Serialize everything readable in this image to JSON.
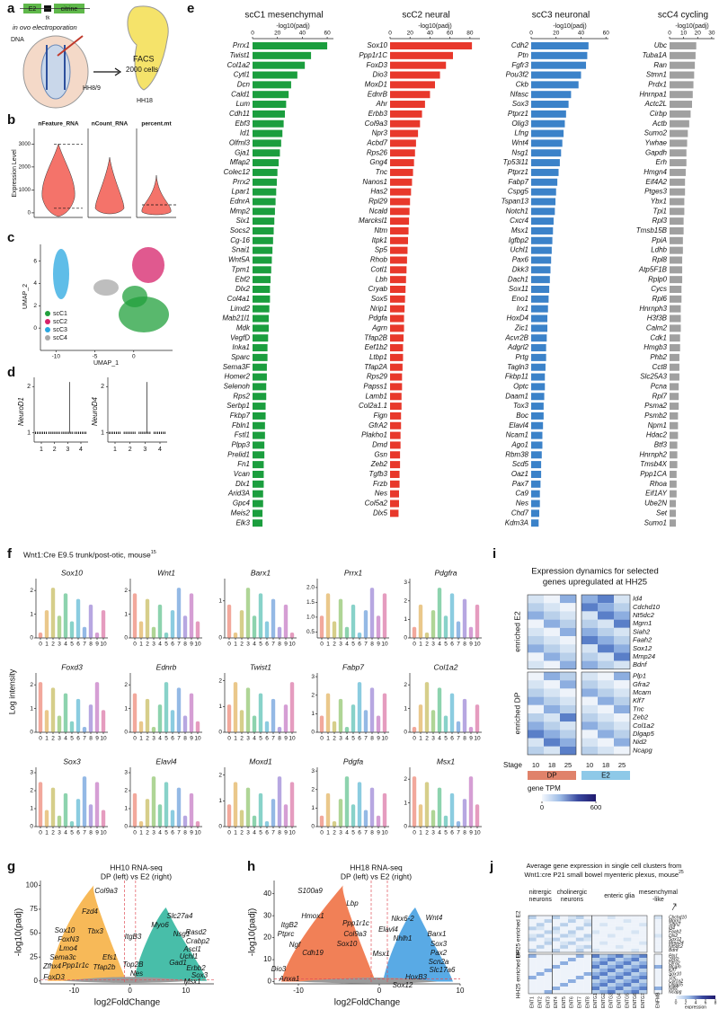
{
  "panel_labels": [
    "a",
    "b",
    "c",
    "d",
    "e",
    "f",
    "g",
    "h",
    "i",
    "j"
  ],
  "a": {
    "construct": [
      "E2",
      "tk",
      "citrine"
    ],
    "method": "in ovo electroporation",
    "dna": "DNA",
    "stage_in": "HH8/9",
    "facs": "FACS",
    "cells": "2000 cells",
    "stage_out": "HH18"
  },
  "b": {
    "ylabel": "Expression Level",
    "panels": [
      "nFeature_RNA",
      "nCount_RNA",
      "percent.mt"
    ],
    "yticks": [
      0,
      1000,
      2000,
      3000
    ],
    "ylim": [
      -200,
      3600
    ]
  },
  "c": {
    "xlabel": "UMAP_1",
    "ylabel": "UMAP_2",
    "xticks": [
      -10,
      -5,
      0
    ],
    "xlim": [
      -12,
      5
    ],
    "yticks": [
      0,
      2,
      4,
      6
    ],
    "ylim": [
      -2,
      7.5
    ],
    "legend": [
      {
        "name": "scC1",
        "color": "#22a03c"
      },
      {
        "name": "scC2",
        "color": "#d6226a"
      },
      {
        "name": "scC3",
        "color": "#2aa7e0"
      },
      {
        "name": "scC4",
        "color": "#a8a8a8"
      }
    ]
  },
  "d": {
    "genes": [
      "NeuroD1",
      "NeuroD4"
    ],
    "yticks": [
      1,
      2
    ],
    "ylim": [
      0.8,
      2.2
    ],
    "xticks": [
      1,
      2,
      3,
      4
    ]
  },
  "chart_data": [
    {
      "type": "barh",
      "title": "scC1 mesenchymal",
      "xlabel": "-log10(padj)",
      "color": "#1b9e3e",
      "xlim": [
        0,
        65
      ],
      "xticks": [
        0,
        20,
        40,
        60
      ],
      "categories": [
        "Prrx1",
        "Twist1",
        "Col1a2",
        "Cytl1",
        "Dcn",
        "Cald1",
        "Lum",
        "Cdh11",
        "Ebf3",
        "Id1",
        "Olfml3",
        "Gja1",
        "Mfap2",
        "Colec12",
        "Prrx2",
        "Lpar1",
        "EdnrA",
        "Mmp2",
        "Six1",
        "Socs2",
        "Cg-16",
        "Snai1",
        "Wnt5A",
        "Tpm1",
        "Ebf2",
        "Dlx2",
        "Col4a1",
        "Limd2",
        "Mab21l1",
        "Mdk",
        "VegfD",
        "Inka1",
        "Sparc",
        "Sema3F",
        "Homer2",
        "Selenoh",
        "Rps2",
        "Serbp1",
        "Fkbp7",
        "Fbln1",
        "Fstl1",
        "Plpp3",
        "Prelid1",
        "Fn1",
        "Vcan",
        "Dlx1",
        "Arid3A",
        "Gpc4",
        "Meis2",
        "Elk3"
      ],
      "values": [
        60,
        47,
        42,
        36,
        31,
        29,
        27,
        26,
        25,
        24,
        23,
        22,
        21,
        20,
        19.5,
        19,
        18.5,
        18,
        17.5,
        17,
        16.5,
        16,
        15.5,
        15,
        14.5,
        14,
        14,
        13.5,
        13,
        13,
        12.5,
        12,
        12,
        11.5,
        11.5,
        11,
        11,
        10.5,
        10.5,
        10,
        10,
        9.5,
        9.5,
        9,
        9,
        9,
        8.5,
        8.5,
        8,
        8
      ]
    },
    {
      "type": "barh",
      "title": "scC2 neural",
      "xlabel": "-log10(padj)",
      "color": "#e8382b",
      "xlim": [
        0,
        90
      ],
      "xticks": [
        0,
        20,
        40,
        60,
        80
      ],
      "categories": [
        "Sox10",
        "Ppp1r1C",
        "FoxD3",
        "Dio3",
        "MoxD1",
        "EdnrB",
        "Ahr",
        "Erbb3",
        "Col9a3",
        "Npr3",
        "Acbd7",
        "Rps26",
        "Gng4",
        "Tnc",
        "Nanos1",
        "Has2",
        "Rpl29",
        "Ncald",
        "Marcksl1",
        "Ntm",
        "Itpk1",
        "Sp5",
        "Rhob",
        "Cotl1",
        "Lbh",
        "Cryab",
        "Sox5",
        "Nrip1",
        "Pdgfa",
        "Agrn",
        "Tfap2B",
        "Eef1b2",
        "Ltbp1",
        "Tfap2A",
        "Rps29",
        "Papss1",
        "Lamb1",
        "Col2a1.1",
        "Fign",
        "GfrA2",
        "Plakho1",
        "Dmd",
        "Gsn",
        "Zeb2",
        "Tgfb3",
        "Frzb",
        "Nes",
        "Col5a2",
        "Dlx5"
      ],
      "values": [
        82,
        63,
        56,
        50,
        45,
        40,
        35,
        32,
        30,
        28,
        26,
        25,
        24,
        23,
        22,
        21,
        20,
        19.5,
        19,
        18.5,
        18,
        17.5,
        17,
        16.5,
        16,
        15.5,
        15,
        14.5,
        14,
        14,
        13.5,
        13,
        13,
        12.5,
        12,
        12,
        11.5,
        11.5,
        11,
        11,
        10.5,
        10.5,
        10,
        10,
        9.5,
        9.5,
        9,
        9,
        8.5
      ]
    },
    {
      "type": "barh",
      "title": "scC3 neuronal",
      "xlabel": "-log10(padj)",
      "color": "#3b82c9",
      "xlim": [
        0,
        62
      ],
      "xticks": [
        0,
        20,
        40,
        60
      ],
      "categories": [
        "Cdh2",
        "Ptn",
        "Fgfr3",
        "Pou3f2",
        "Ckb",
        "Nfasc",
        "Sox3",
        "Ptprz1",
        "Olig3",
        "Lfng",
        "Wnt4",
        "Nsg1",
        "Tp53i11",
        "Ptprz1",
        "Fabp7",
        "Cspg5",
        "Tspan13",
        "Notch1",
        "Cxcr4",
        "Msx1",
        "Igfbp2",
        "Uchl1",
        "Pax6",
        "Dkk3",
        "Dach1",
        "Sox11",
        "Eno1",
        "Irx1",
        "HoxD4",
        "Zic1",
        "Acvr2B",
        "Adgrl2",
        "Prtg",
        "Tagln3",
        "Fkbp11",
        "Optc",
        "Daam1",
        "Tox3",
        "Boc",
        "Elavl4",
        "Ncam1",
        "Ago1",
        "Rbm38",
        "Scd5",
        "Oaz1",
        "Pax7",
        "Ca9",
        "Nes",
        "Chd7",
        "Kdm3A"
      ],
      "values": [
        46,
        45,
        44,
        40,
        38,
        32,
        30,
        28,
        27,
        26,
        25,
        24,
        23,
        22,
        21,
        20,
        19.5,
        19,
        18,
        17.5,
        17,
        16.5,
        16,
        15.5,
        15,
        14.5,
        14,
        13.5,
        13,
        13,
        12.5,
        12,
        12,
        11.5,
        11,
        11,
        10.5,
        10,
        10,
        9.5,
        9,
        9,
        8.5,
        8,
        8,
        7.5,
        7,
        7,
        6.5,
        6
      ]
    },
    {
      "type": "barh",
      "title": "scC4 cycling",
      "xlabel": "-log10(padj)",
      "color": "#a0a0a0",
      "xlim": [
        0,
        32
      ],
      "xticks": [
        0,
        10,
        20,
        30
      ],
      "categories": [
        "Ubc",
        "Tuba1A",
        "Ran",
        "Stmn1",
        "Prdx1",
        "Hnrnpa1",
        "Actc2L",
        "Cirbp",
        "Actb",
        "Sumo2",
        "Ywhae",
        "Gapdh",
        "Erh",
        "Hmgn4",
        "Eif4A2",
        "Ptges3",
        "Ybx1",
        "Tpi1",
        "Rpl3",
        "Tmsb15B",
        "PpiA",
        "Ldhb",
        "Rpl8",
        "Atp5F1B",
        "Rplp0",
        "Cycs",
        "Rpl6",
        "Hnrnph3",
        "H3f3B",
        "Calm2",
        "Cdk1",
        "Hmgb3",
        "Phb2",
        "Cct8",
        "Slc25A3",
        "Pcna",
        "Rpl7",
        "Psma2",
        "Psmb2",
        "Npm1",
        "Hdac2",
        "Btf3",
        "Hnrnph2",
        "Tmsb4X",
        "Ppp1CA",
        "Rhoa",
        "Eif1AY",
        "Ube2N",
        "Set",
        "Sumo1"
      ],
      "values": [
        19,
        18.5,
        18,
        17.5,
        17,
        16.5,
        16,
        15,
        14,
        13,
        12.5,
        12,
        12,
        11.5,
        11,
        11,
        10.5,
        10.5,
        10,
        10,
        9.5,
        9.5,
        9,
        9,
        9,
        8.5,
        8.5,
        8,
        8,
        8,
        7.5,
        7.5,
        7,
        7,
        7,
        6.5,
        6.5,
        6.5,
        6,
        6,
        6,
        5.5,
        5.5,
        5.5,
        5,
        5,
        5,
        4.5,
        4.5,
        4.5
      ]
    }
  ],
  "f": {
    "title": "Wnt1:Cre E9.5 trunk/post-otic, mouse",
    "ref": "15",
    "ylabel": "Log intensity",
    "xticks": [
      0,
      1,
      2,
      3,
      4,
      5,
      6,
      7,
      8,
      9,
      10
    ],
    "plots": [
      {
        "gene": "Sox10",
        "ylim": [
          0,
          2.5
        ],
        "yticks": [
          0,
          1,
          2
        ]
      },
      {
        "gene": "Wnt1",
        "ylim": [
          0,
          2.5
        ],
        "yticks": [
          0,
          1,
          2
        ]
      },
      {
        "gene": "Barx1",
        "ylim": [
          0,
          1.6
        ],
        "yticks": [
          0,
          1
        ]
      },
      {
        "gene": "Prrx1",
        "ylim": [
          0.3,
          2.3
        ],
        "yticks": [
          0.5,
          {
            "value": 1,
            "label": "1.0"
          },
          1.5,
          {
            "value": 2,
            "label": "2.0"
          }
        ]
      },
      {
        "gene": "Pdgfra",
        "ylim": [
          0,
          3.2
        ],
        "yticks": [
          0,
          1,
          2,
          3
        ]
      },
      {
        "gene": "Foxd3",
        "ylim": [
          0,
          2.5
        ],
        "yticks": [
          0,
          1,
          2
        ]
      },
      {
        "gene": "Ednrb",
        "ylim": [
          0,
          2.5
        ],
        "yticks": [
          0,
          1,
          2
        ]
      },
      {
        "gene": "Twist1",
        "ylim": [
          0,
          2.3
        ],
        "yticks": [
          0,
          1,
          2
        ]
      },
      {
        "gene": "Fabp7",
        "ylim": [
          0,
          3.2
        ],
        "yticks": [
          0,
          1,
          2,
          3
        ]
      },
      {
        "gene": "Col1a2",
        "ylim": [
          0,
          2.5
        ],
        "yticks": [
          0,
          1,
          2
        ]
      },
      {
        "gene": "Sox3",
        "ylim": [
          0,
          3.3
        ],
        "yticks": [
          0,
          1,
          2,
          3
        ]
      },
      {
        "gene": "Elavl4",
        "ylim": [
          0,
          3.3
        ],
        "yticks": [
          0,
          1,
          2,
          3
        ]
      },
      {
        "gene": "Moxd1",
        "ylim": [
          0,
          2.3
        ],
        "yticks": [
          0,
          1,
          2
        ]
      },
      {
        "gene": "Pdgfa",
        "ylim": [
          0,
          3.2
        ],
        "yticks": [
          0,
          1,
          2,
          3
        ]
      },
      {
        "gene": "Msx1",
        "ylim": [
          0,
          2.5
        ],
        "yticks": [
          0,
          1,
          2
        ]
      }
    ]
  },
  "g": {
    "title": "HH10 RNA-seq",
    "subtitle": "DP (left) vs E2 (right)",
    "xlabel": "log2FoldChange",
    "ylabel": "-log10(padj)",
    "xlim": [
      -16,
      15
    ],
    "xticks": [
      -10,
      0,
      10
    ],
    "ylim": [
      -3,
      105
    ],
    "yticks": [
      0,
      25,
      50,
      75,
      100
    ],
    "labels": [
      "Col9a3",
      "Fzd4",
      "Sox10",
      "Tbx3",
      "FoxN3",
      "Lmo4",
      "Sema3c",
      "ItgB3",
      "Efs1",
      "Ppp1r1c",
      "Tfap2b",
      "Top2B",
      "Nes",
      "Zfhx4",
      "FoxD3",
      "Myo6",
      "Slc27a4",
      "Nsg1",
      "Rasd2",
      "Crabp2",
      "Ascl1",
      "Uchl1",
      "Gad1",
      "Erbb2",
      "Sox3",
      "Msx1"
    ]
  },
  "h": {
    "title": "HH18 RNA-seq",
    "subtitle": "DP (left) vs E2 (right)",
    "xlabel": "log2FoldChange",
    "ylabel": "-log10(padj)",
    "xlim": [
      -13,
      10
    ],
    "xticks": [
      -10,
      0,
      10
    ],
    "ylim": [
      -1,
      46
    ],
    "yticks": [
      0,
      10,
      20,
      30,
      40
    ],
    "labels": [
      "S100a9",
      "Lbp",
      "Hmox1",
      "ItgB2",
      "Ppp1r1c",
      "Ptprc",
      "Ngf",
      "Col9a3",
      "Sox10",
      "Cdh19",
      "Nkx6-2",
      "Wnt4",
      "Elavl4",
      "Nhlh1",
      "Barx1",
      "Sox3",
      "Pax2",
      "Scn2a",
      "Msx1",
      "Dio3",
      "Anxa1",
      "HoxB3",
      "Slc17a6",
      "Sox12"
    ]
  },
  "i": {
    "title": [
      "Expression dynamics for selected",
      "genes upregulated at HH25"
    ],
    "groups": [
      "enriched E2",
      "enriched DP"
    ],
    "genes_e2": [
      "Id4",
      "Cdchd10",
      "Nt5dc2",
      "Mgrn1",
      "Siah2",
      "Faah2",
      "Sox12",
      "Mmp24",
      "Bdnf"
    ],
    "genes_dp": [
      "Plp1",
      "Gfra2",
      "Mcam",
      "Klf7",
      "Tnc",
      "Zeb2",
      "Col1a2",
      "Dlgap5",
      "Nid2",
      "Ncapg"
    ],
    "stage_label": "Stage",
    "stages": [
      "10",
      "18",
      "25"
    ],
    "conditions": [
      {
        "name": "DP",
        "color": "#e0826a"
      },
      {
        "name": "E2",
        "color": "#8ec9e8"
      }
    ],
    "colorbar_label": "gene TPM",
    "colorbar_ticks": [
      0,
      600
    ]
  },
  "j": {
    "title": [
      "Average gene expression in single cell clusters from",
      "Wnt1:cre P21 small bowel myenteric plexus, mouse"
    ],
    "ref": "25",
    "groups": [
      [
        "nitrergic",
        "neurons"
      ],
      [
        "cholinergic",
        "neurons"
      ],
      [
        "enteric glia"
      ],
      [
        "mesenchymal",
        "-like"
      ]
    ],
    "clusters": [
      "ENT1",
      "ENT2",
      "ENT3",
      "ENT4",
      "ENT5",
      "ENT6",
      "ENT7",
      "ENT8",
      "ENTG1",
      "ENTG2",
      "ENTG3",
      "ENTG4",
      "ENTG5",
      "ENTG6",
      "ENTG7",
      "ENFMB"
    ],
    "row_groups": [
      "HH25 enriched E2",
      "HH25 enriched DP"
    ],
    "genes_e2": [
      "Chchd10",
      "Mgrn1",
      "Siah2",
      "Id4",
      "Faah2",
      "Dlx2",
      "Sox12",
      "Mmp24",
      "Nt5dc2",
      "Bdnf"
    ],
    "genes_dp": [
      "Plp1",
      "Zeb2",
      "Gfra2",
      "Mcam",
      "Klf7",
      "Sox10",
      "Tnc",
      "Col1a2",
      "Dlgap5",
      "Nid2",
      "Ncapg"
    ],
    "colorbar_ticks": [
      0,
      2,
      4,
      6,
      8
    ],
    "colorbar_label": "expression"
  }
}
